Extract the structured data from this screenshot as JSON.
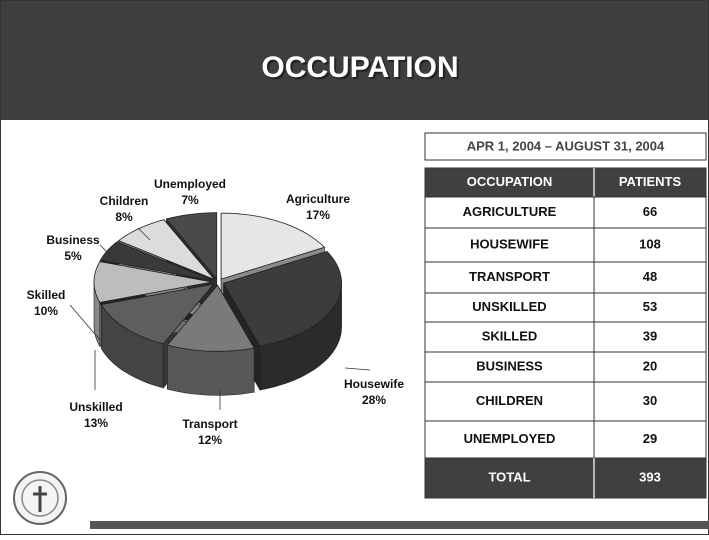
{
  "title": "OCCUPATION",
  "chart_data": {
    "type": "pie",
    "categories": [
      "Agriculture",
      "Housewife",
      "Transport",
      "Unskilled",
      "Skilled",
      "Business",
      "Children",
      "Unemployed"
    ],
    "values": [
      17,
      28,
      12,
      13,
      10,
      5,
      8,
      7
    ],
    "value_labels": [
      "17%",
      "28%",
      "12%",
      "13%",
      "10%",
      "5%",
      "8%",
      "7%"
    ],
    "colors": [
      "#e6e6e6",
      "#3c3c3c",
      "#7a7a7a",
      "#5e5e5e",
      "#bdbdbd",
      "#3a3a3a",
      "#dcdcdc",
      "#4a4a4a"
    ]
  },
  "table": {
    "caption": "APR 1, 2004 – AUGUST 31, 2004",
    "header": [
      "OCCUPATION",
      "PATIENTS"
    ],
    "rows": [
      [
        "AGRICULTURE",
        66
      ],
      [
        "HOUSEWIFE",
        108
      ],
      [
        "TRANSPORT",
        48
      ],
      [
        "UNSKILLED",
        53
      ],
      [
        "SKILLED",
        39
      ],
      [
        "BUSINESS",
        20
      ],
      [
        "CHILDREN",
        30
      ],
      [
        "UNEMPLOYED",
        29
      ]
    ],
    "total": [
      "TOTAL",
      393
    ]
  }
}
